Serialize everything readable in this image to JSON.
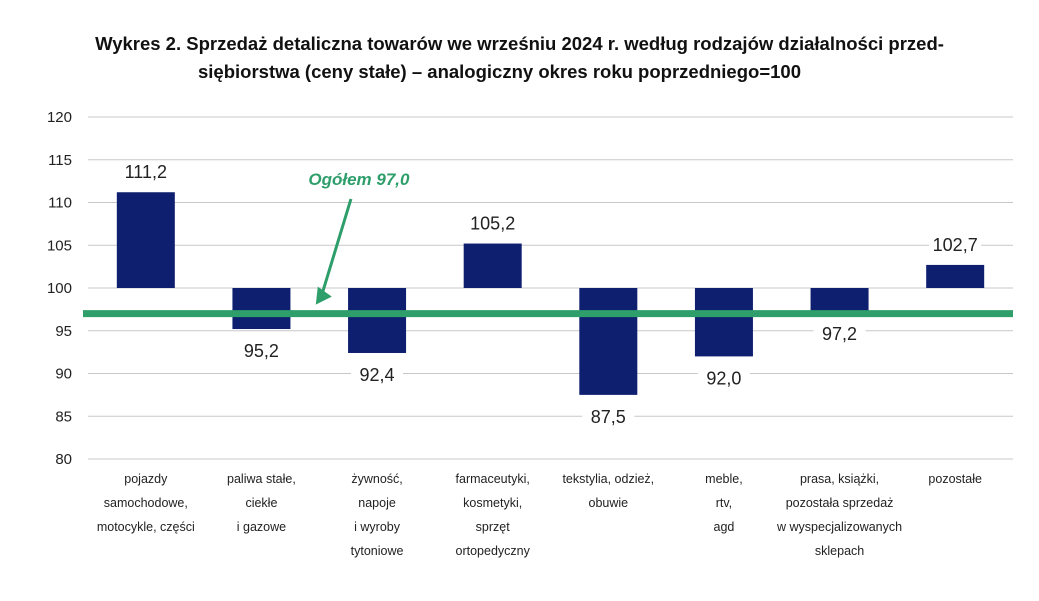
{
  "chart_data": {
    "type": "bar",
    "title_line1": "Wykres 2. Sprzedaż detaliczna towarów we wrześniu 2024 r. według rodzajów działalności przed-",
    "title_line2": "siębiorstwa (ceny stałe) – analogiczny okres roku poprzedniego=100",
    "baseline": 100,
    "ylim": [
      80,
      120
    ],
    "yticks": [
      80,
      85,
      90,
      95,
      100,
      105,
      110,
      115,
      120
    ],
    "categories": [
      [
        "pojazdy",
        "samochodowe,",
        "motocykle, części"
      ],
      [
        "paliwa stałe,",
        "ciekłe",
        "i gazowe"
      ],
      [
        "żywność,",
        "napoje",
        "i wyroby",
        "tytoniowe"
      ],
      [
        "farmaceutyki,",
        "kosmetyki,",
        "sprzęt",
        "ortopedyczny"
      ],
      [
        "tekstylia, odzież,",
        "obuwie"
      ],
      [
        "meble,",
        "rtv,",
        "agd"
      ],
      [
        "prasa, książki,",
        "pozostała sprzedaż",
        "w wyspecjalizowanych",
        "sklepach"
      ],
      [
        "pozostałe"
      ]
    ],
    "values": [
      111.2,
      95.2,
      92.4,
      105.2,
      87.5,
      92.0,
      97.2,
      102.7
    ],
    "value_labels": [
      "111,2",
      "95,2",
      "92,4",
      "105,2",
      "87,5",
      "92,0",
      "97,2",
      "102,7"
    ],
    "reference_line": {
      "value": 97.0,
      "label": "Ogółem 97,0"
    },
    "grid": true,
    "colors": {
      "bar": "#0d1f6e",
      "reference": "#2e9e6b",
      "grid": "#c8c8c8"
    }
  }
}
